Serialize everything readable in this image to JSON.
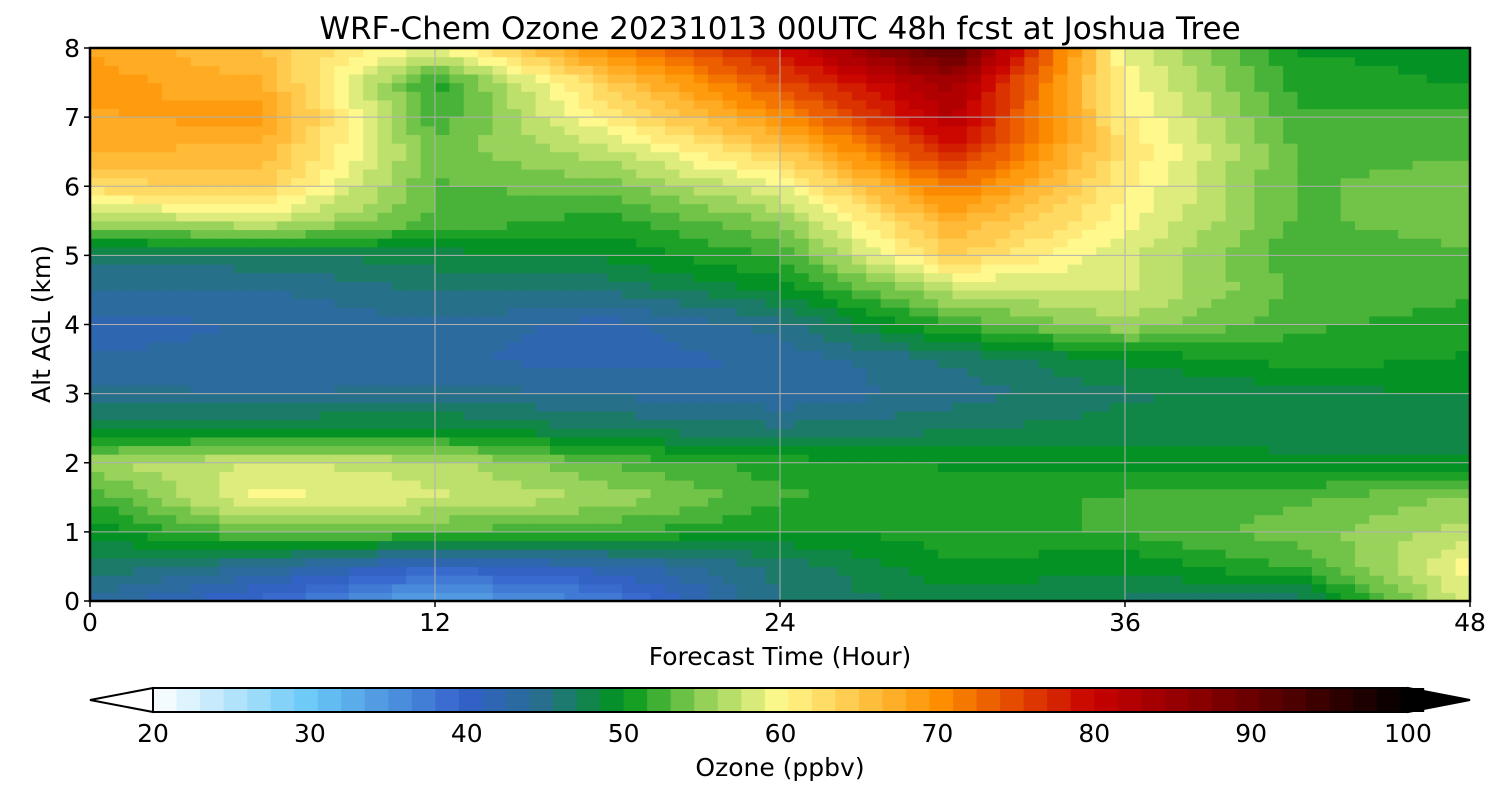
{
  "chart_data": {
    "type": "heatmap",
    "title": "WRF-Chem Ozone  20231013 00UTC 48h fcst at Joshua Tree",
    "xlabel": "Forecast Time (Hour)",
    "ylabel": "Alt AGL (km)",
    "xlim": [
      0,
      48
    ],
    "ylim": [
      0,
      8
    ],
    "x_ticks": [
      0,
      12,
      24,
      36,
      48
    ],
    "y_ticks": [
      0,
      1,
      2,
      3,
      4,
      5,
      6,
      7,
      8
    ],
    "grid": true,
    "x": [
      0,
      6,
      12,
      18,
      24,
      30,
      36,
      42,
      48
    ],
    "y": [
      0,
      0.5,
      1,
      1.5,
      2,
      2.5,
      3,
      3.5,
      4,
      4.5,
      5,
      5.5,
      6,
      6.5,
      7,
      7.5,
      8
    ],
    "z": [
      [
        44,
        39,
        33,
        37,
        46,
        48,
        47,
        46,
        59
      ],
      [
        47,
        44,
        40,
        42,
        46,
        50,
        49,
        52,
        60
      ],
      [
        49,
        54,
        53,
        52,
        50,
        51,
        52,
        54,
        57
      ],
      [
        52,
        60,
        58,
        56,
        52,
        51,
        52,
        53,
        55
      ],
      [
        56,
        58,
        57,
        53,
        51,
        50,
        50,
        49,
        49
      ],
      [
        48,
        49,
        49,
        47,
        46,
        47,
        48,
        48,
        47
      ],
      [
        45,
        44,
        45,
        44,
        43,
        45,
        47,
        48,
        49
      ],
      [
        43,
        43,
        43,
        42,
        43,
        46,
        49,
        51,
        50
      ],
      [
        42,
        43,
        44,
        42,
        45,
        52,
        56,
        52,
        51
      ],
      [
        44,
        44,
        46,
        46,
        49,
        57,
        58,
        53,
        52
      ],
      [
        46,
        47,
        48,
        49,
        52,
        64,
        58,
        52,
        53
      ],
      [
        56,
        58,
        53,
        51,
        55,
        67,
        60,
        53,
        54
      ],
      [
        63,
        64,
        53,
        54,
        59,
        72,
        61,
        53,
        54
      ],
      [
        67,
        66,
        54,
        57,
        64,
        78,
        62,
        53,
        53
      ],
      [
        68,
        69,
        52,
        61,
        70,
        82,
        61,
        52,
        52
      ],
      [
        69,
        67,
        51,
        64,
        75,
        84,
        60,
        51,
        50
      ],
      [
        68,
        65,
        59,
        71,
        79,
        92,
        59,
        50,
        50
      ]
    ],
    "colorbar": {
      "label": "Ozone  (ppbv)",
      "min": 20,
      "max": 100,
      "ticks": [
        20,
        30,
        40,
        50,
        60,
        70,
        80,
        90,
        100
      ],
      "extend": "both",
      "stops": [
        [
          20,
          "#ffffff"
        ],
        [
          30,
          "#6ac9f7"
        ],
        [
          40,
          "#3360c9"
        ],
        [
          45,
          "#27708a"
        ],
        [
          50,
          "#00961a"
        ],
        [
          55,
          "#8fcf55"
        ],
        [
          60,
          "#fff98d"
        ],
        [
          70,
          "#ff9100"
        ],
        [
          80,
          "#c80000"
        ],
        [
          90,
          "#6a0000"
        ],
        [
          100,
          "#000000"
        ]
      ]
    }
  }
}
